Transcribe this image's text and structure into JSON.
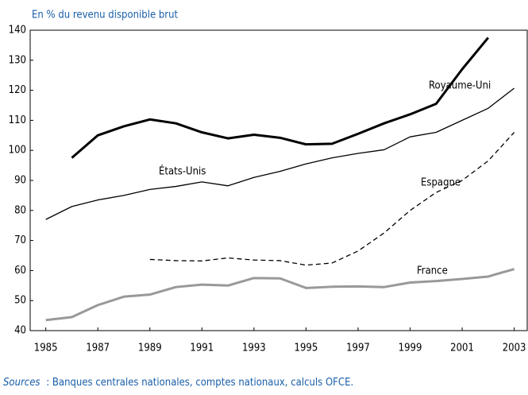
{
  "chart_data": {
    "type": "line",
    "y_axis_label": "En % du revenu disponible brut",
    "source_label": "Sources",
    "source": ": Banques centrales nationales, comptes nationaux, calculs OFCE.",
    "x": [
      1985,
      1986,
      1987,
      1988,
      1989,
      1990,
      1991,
      1992,
      1993,
      1994,
      1995,
      1996,
      1997,
      1998,
      1999,
      2000,
      2001,
      2002,
      2003
    ],
    "xlim": [
      1984.4,
      2003.5
    ],
    "xticks": [
      1985,
      1987,
      1989,
      1991,
      1993,
      1995,
      1997,
      1999,
      2001,
      2003
    ],
    "ylim": [
      40,
      140
    ],
    "yticks": [
      40,
      50,
      60,
      70,
      80,
      90,
      100,
      110,
      120,
      130,
      140
    ],
    "series": [
      {
        "name": "Royaume-Uni",
        "color": "#000000",
        "dash": "solid",
        "width": 3,
        "values": [
          null,
          97.5,
          105,
          108,
          110.3,
          109,
          106,
          104,
          105.2,
          104.2,
          102,
          102.2,
          105.5,
          109,
          112,
          115.5,
          127,
          137.5,
          null
        ]
      },
      {
        "name": "États-Unis",
        "color": "#000000",
        "dash": "solid",
        "width": 1.3,
        "values": [
          77,
          81.3,
          83.5,
          85,
          87,
          88,
          89.5,
          88.2,
          91,
          93,
          95.5,
          97.5,
          99,
          100.2,
          104.5,
          106,
          110,
          114,
          120.7
        ]
      },
      {
        "name": "Espagne",
        "color": "#000000",
        "dash": "dashed",
        "width": 1.3,
        "values": [
          null,
          null,
          null,
          null,
          63.7,
          63.3,
          63.2,
          64.2,
          63.5,
          63.3,
          61.8,
          62.5,
          66.5,
          72.5,
          80,
          86,
          90,
          96.5,
          106
        ]
      },
      {
        "name": "France",
        "color": "#999999",
        "dash": "solid",
        "width": 3,
        "values": [
          43.5,
          44.5,
          48.5,
          51.3,
          52,
          54.5,
          55.3,
          55,
          57.5,
          57.4,
          54.2,
          54.6,
          54.7,
          54.5,
          56,
          56.5,
          57.2,
          58,
          60.5
        ]
      }
    ]
  }
}
